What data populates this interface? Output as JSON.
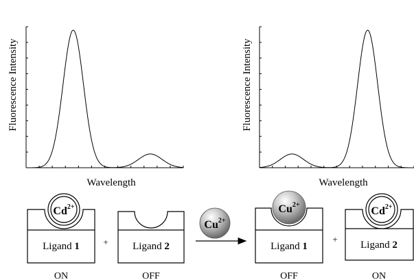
{
  "charts": [
    {
      "ylabel": "Fluorescence Intensity",
      "xlabel": "Wavelength",
      "peaks": [
        {
          "center": 0.3,
          "width": 0.065,
          "height": 1.0
        },
        {
          "center": 0.79,
          "width": 0.075,
          "height": 0.1
        }
      ]
    },
    {
      "ylabel": "Fluorescence Intensity",
      "xlabel": "Wavelength",
      "peaks": [
        {
          "center": 0.21,
          "width": 0.075,
          "height": 0.1
        },
        {
          "center": 0.7,
          "width": 0.065,
          "height": 1.0
        }
      ]
    }
  ],
  "scheme": {
    "left_complex": {
      "ion": "Cd",
      "charge": "2+",
      "ligand_text": "Ligand ",
      "ligand_num": "1",
      "state": "ON"
    },
    "left_free": {
      "ligand_text": "Ligand ",
      "ligand_num": "2",
      "state": "OFF"
    },
    "plus_left": "+",
    "reagent": {
      "ion": "Cu",
      "charge": "2+"
    },
    "right_complex": {
      "ion": "Cu",
      "charge": "2+",
      "ligand_text": "Ligand ",
      "ligand_num": "1",
      "state": "OFF"
    },
    "plus_right": "+",
    "right_complex2": {
      "ion": "Cd",
      "charge": "2+",
      "ligand_text": "Ligand ",
      "ligand_num": "2",
      "state": "ON"
    }
  },
  "colors": {
    "line": "#000000",
    "sphere_highlight": "#ffffff",
    "sphere_shadow": "#6a6a6a"
  }
}
